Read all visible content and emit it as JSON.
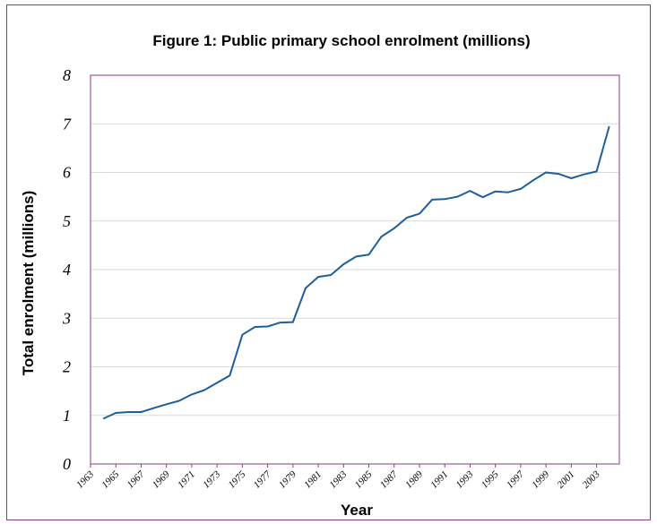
{
  "chart_data": {
    "type": "line",
    "title": "Figure 1: Public primary school enrolment (millions)",
    "xlabel": "Year",
    "ylabel": "Total enrolment (millions)",
    "ylim": [
      0,
      8
    ],
    "yticks": [
      0,
      1,
      2,
      3,
      4,
      5,
      6,
      7,
      8
    ],
    "xticks": [
      "1963",
      "1965",
      "1967",
      "1969",
      "1971",
      "1973",
      "1975",
      "1977",
      "1979",
      "1981",
      "1983",
      "1985",
      "1987",
      "1989",
      "1991",
      "1993",
      "1995",
      "1997",
      "1999",
      "2001",
      "2003"
    ],
    "grid": true,
    "series": [
      {
        "color": "#1f5f99",
        "x": [
          1964,
          1965,
          1966,
          1967,
          1968,
          1969,
          1970,
          1971,
          1972,
          1973,
          1974,
          1975,
          1976,
          1977,
          1978,
          1979,
          1980,
          1981,
          1982,
          1983,
          1984,
          1985,
          1986,
          1987,
          1988,
          1989,
          1990,
          1991,
          1992,
          1993,
          1994,
          1995,
          1996,
          1997,
          1998,
          1999,
          2000,
          2001,
          2002,
          2003,
          2004
        ],
        "y": [
          0.93,
          1.05,
          1.07,
          1.07,
          1.15,
          1.23,
          1.3,
          1.43,
          1.52,
          1.67,
          1.82,
          2.66,
          2.82,
          2.83,
          2.91,
          2.92,
          3.62,
          3.85,
          3.89,
          4.11,
          4.27,
          4.31,
          4.68,
          4.85,
          5.07,
          5.15,
          5.44,
          5.45,
          5.5,
          5.62,
          5.49,
          5.61,
          5.59,
          5.66,
          5.84,
          6.0,
          5.97,
          5.88,
          5.96,
          6.02,
          6.95
        ]
      }
    ]
  }
}
